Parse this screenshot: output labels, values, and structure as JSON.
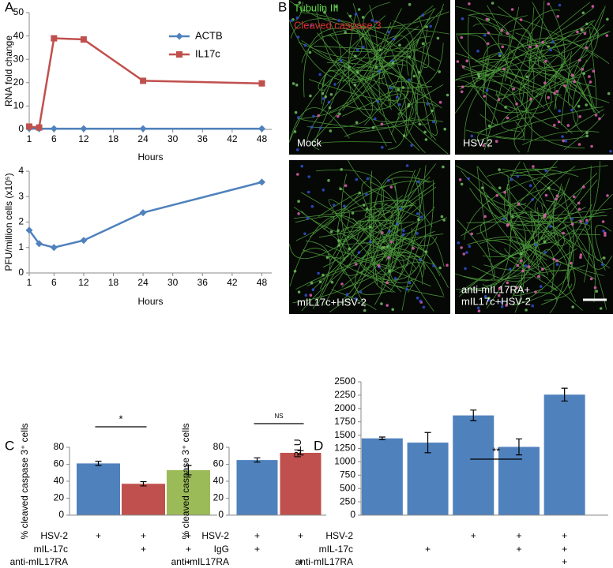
{
  "panel_labels": [
    "A",
    "B",
    "C",
    "D"
  ],
  "micrographs": {
    "channels": [
      "Tubulin III",
      "Cleaved caspase 3"
    ],
    "panels": [
      {
        "label": "Mock"
      },
      {
        "label": "HSV-2"
      },
      {
        "label": "mIL17c+HSV-2"
      },
      {
        "label": [
          "anti-mIL17RA+",
          "mIL17c+HSV-2"
        ]
      }
    ]
  },
  "chart_data": [
    {
      "type": "line",
      "ylabel": "RNA fold change",
      "xlabel": "Hours",
      "x": [
        1,
        3,
        6,
        12,
        24,
        48
      ],
      "series": [
        {
          "name": "ACTB",
          "color": "#4f81bd",
          "marker": "diamond",
          "values": [
            0.4,
            0.3,
            0.3,
            0.3,
            0.3,
            0.3
          ]
        },
        {
          "name": "IL17c",
          "color": "#c0504d",
          "marker": "square",
          "values": [
            1.2,
            0.8,
            39,
            38.5,
            20.8,
            19.7
          ]
        }
      ],
      "xlim": [
        1,
        50
      ],
      "xticks": [
        1,
        6,
        12,
        18,
        24,
        30,
        36,
        42,
        48
      ],
      "ylim": [
        0,
        50
      ],
      "yticks": [
        0,
        10,
        20,
        30,
        40,
        50
      ],
      "legend": "upper-right"
    },
    {
      "type": "line",
      "ylabel": "PFU/million cells (x10⁵)",
      "xlabel": "Hours",
      "x": [
        1,
        3,
        6,
        12,
        24,
        48
      ],
      "series": [
        {
          "color": "#4f81bd",
          "marker": "diamond",
          "values": [
            1.68,
            1.15,
            1.0,
            1.28,
            2.37,
            3.57
          ]
        }
      ],
      "xlim": [
        1,
        50
      ],
      "xticks": [
        1,
        6,
        12,
        18,
        24,
        30,
        36,
        42,
        48
      ],
      "ylim": [
        0,
        4
      ],
      "yticks": [
        0,
        1,
        2,
        3,
        4
      ]
    },
    {
      "type": "bar",
      "ylabel": "% cleaved caspase 3⁺ cells",
      "values": [
        61,
        37,
        53
      ],
      "errors": [
        2.5,
        2.5,
        5.5
      ],
      "colors": [
        "#4f81bd",
        "#c0504d",
        "#9bbb59"
      ],
      "ylim": [
        0,
        80
      ],
      "yticks": [
        0,
        20,
        40,
        60,
        80
      ],
      "significance": "*",
      "conditions": [
        {
          "label": "HSV-2",
          "marks": [
            "+",
            "+",
            "+"
          ]
        },
        {
          "label": "mIL-17c",
          "marks": [
            null,
            "+",
            "+"
          ]
        },
        {
          "label": "anti-mIL17RA",
          "marks": [
            null,
            null,
            "+"
          ]
        }
      ]
    },
    {
      "type": "bar",
      "ylabel": "% cleaved caspase 3⁺ cells",
      "values": [
        65,
        73.5
      ],
      "errors": [
        2.5,
        2.5
      ],
      "colors": [
        "#4f81bd",
        "#c0504d"
      ],
      "ylim": [
        0,
        80
      ],
      "yticks": [
        0,
        20,
        40,
        60,
        80
      ],
      "significance": "NS",
      "conditions": [
        {
          "label": "HSV-2",
          "marks": [
            "+",
            "+"
          ]
        },
        {
          "label": "IgG",
          "marks": [
            "+",
            null
          ]
        },
        {
          "label": "anti-mIL17RA",
          "marks": [
            null,
            "+"
          ]
        }
      ]
    },
    {
      "type": "bar",
      "ylabel": "RLU",
      "values": [
        1440,
        1360,
        1870,
        1280,
        2260
      ],
      "errors": [
        25,
        190,
        100,
        150,
        120
      ],
      "colors": [
        "#4f81bd",
        "#4f81bd",
        "#4f81bd",
        "#4f81bd",
        "#4f81bd"
      ],
      "ylim": [
        0,
        2500
      ],
      "yticks": [
        0,
        250,
        500,
        750,
        1000,
        1250,
        1500,
        1750,
        2000,
        2250,
        2500
      ],
      "significance": "**",
      "conditions": [
        {
          "label": "HSV-2",
          "marks": [
            null,
            null,
            "+",
            "+",
            "+"
          ]
        },
        {
          "label": "mIL-17c",
          "marks": [
            null,
            "+",
            null,
            "+",
            "+"
          ]
        },
        {
          "label": "anti-mIL17RA",
          "marks": [
            null,
            null,
            null,
            null,
            "+"
          ]
        }
      ]
    }
  ]
}
